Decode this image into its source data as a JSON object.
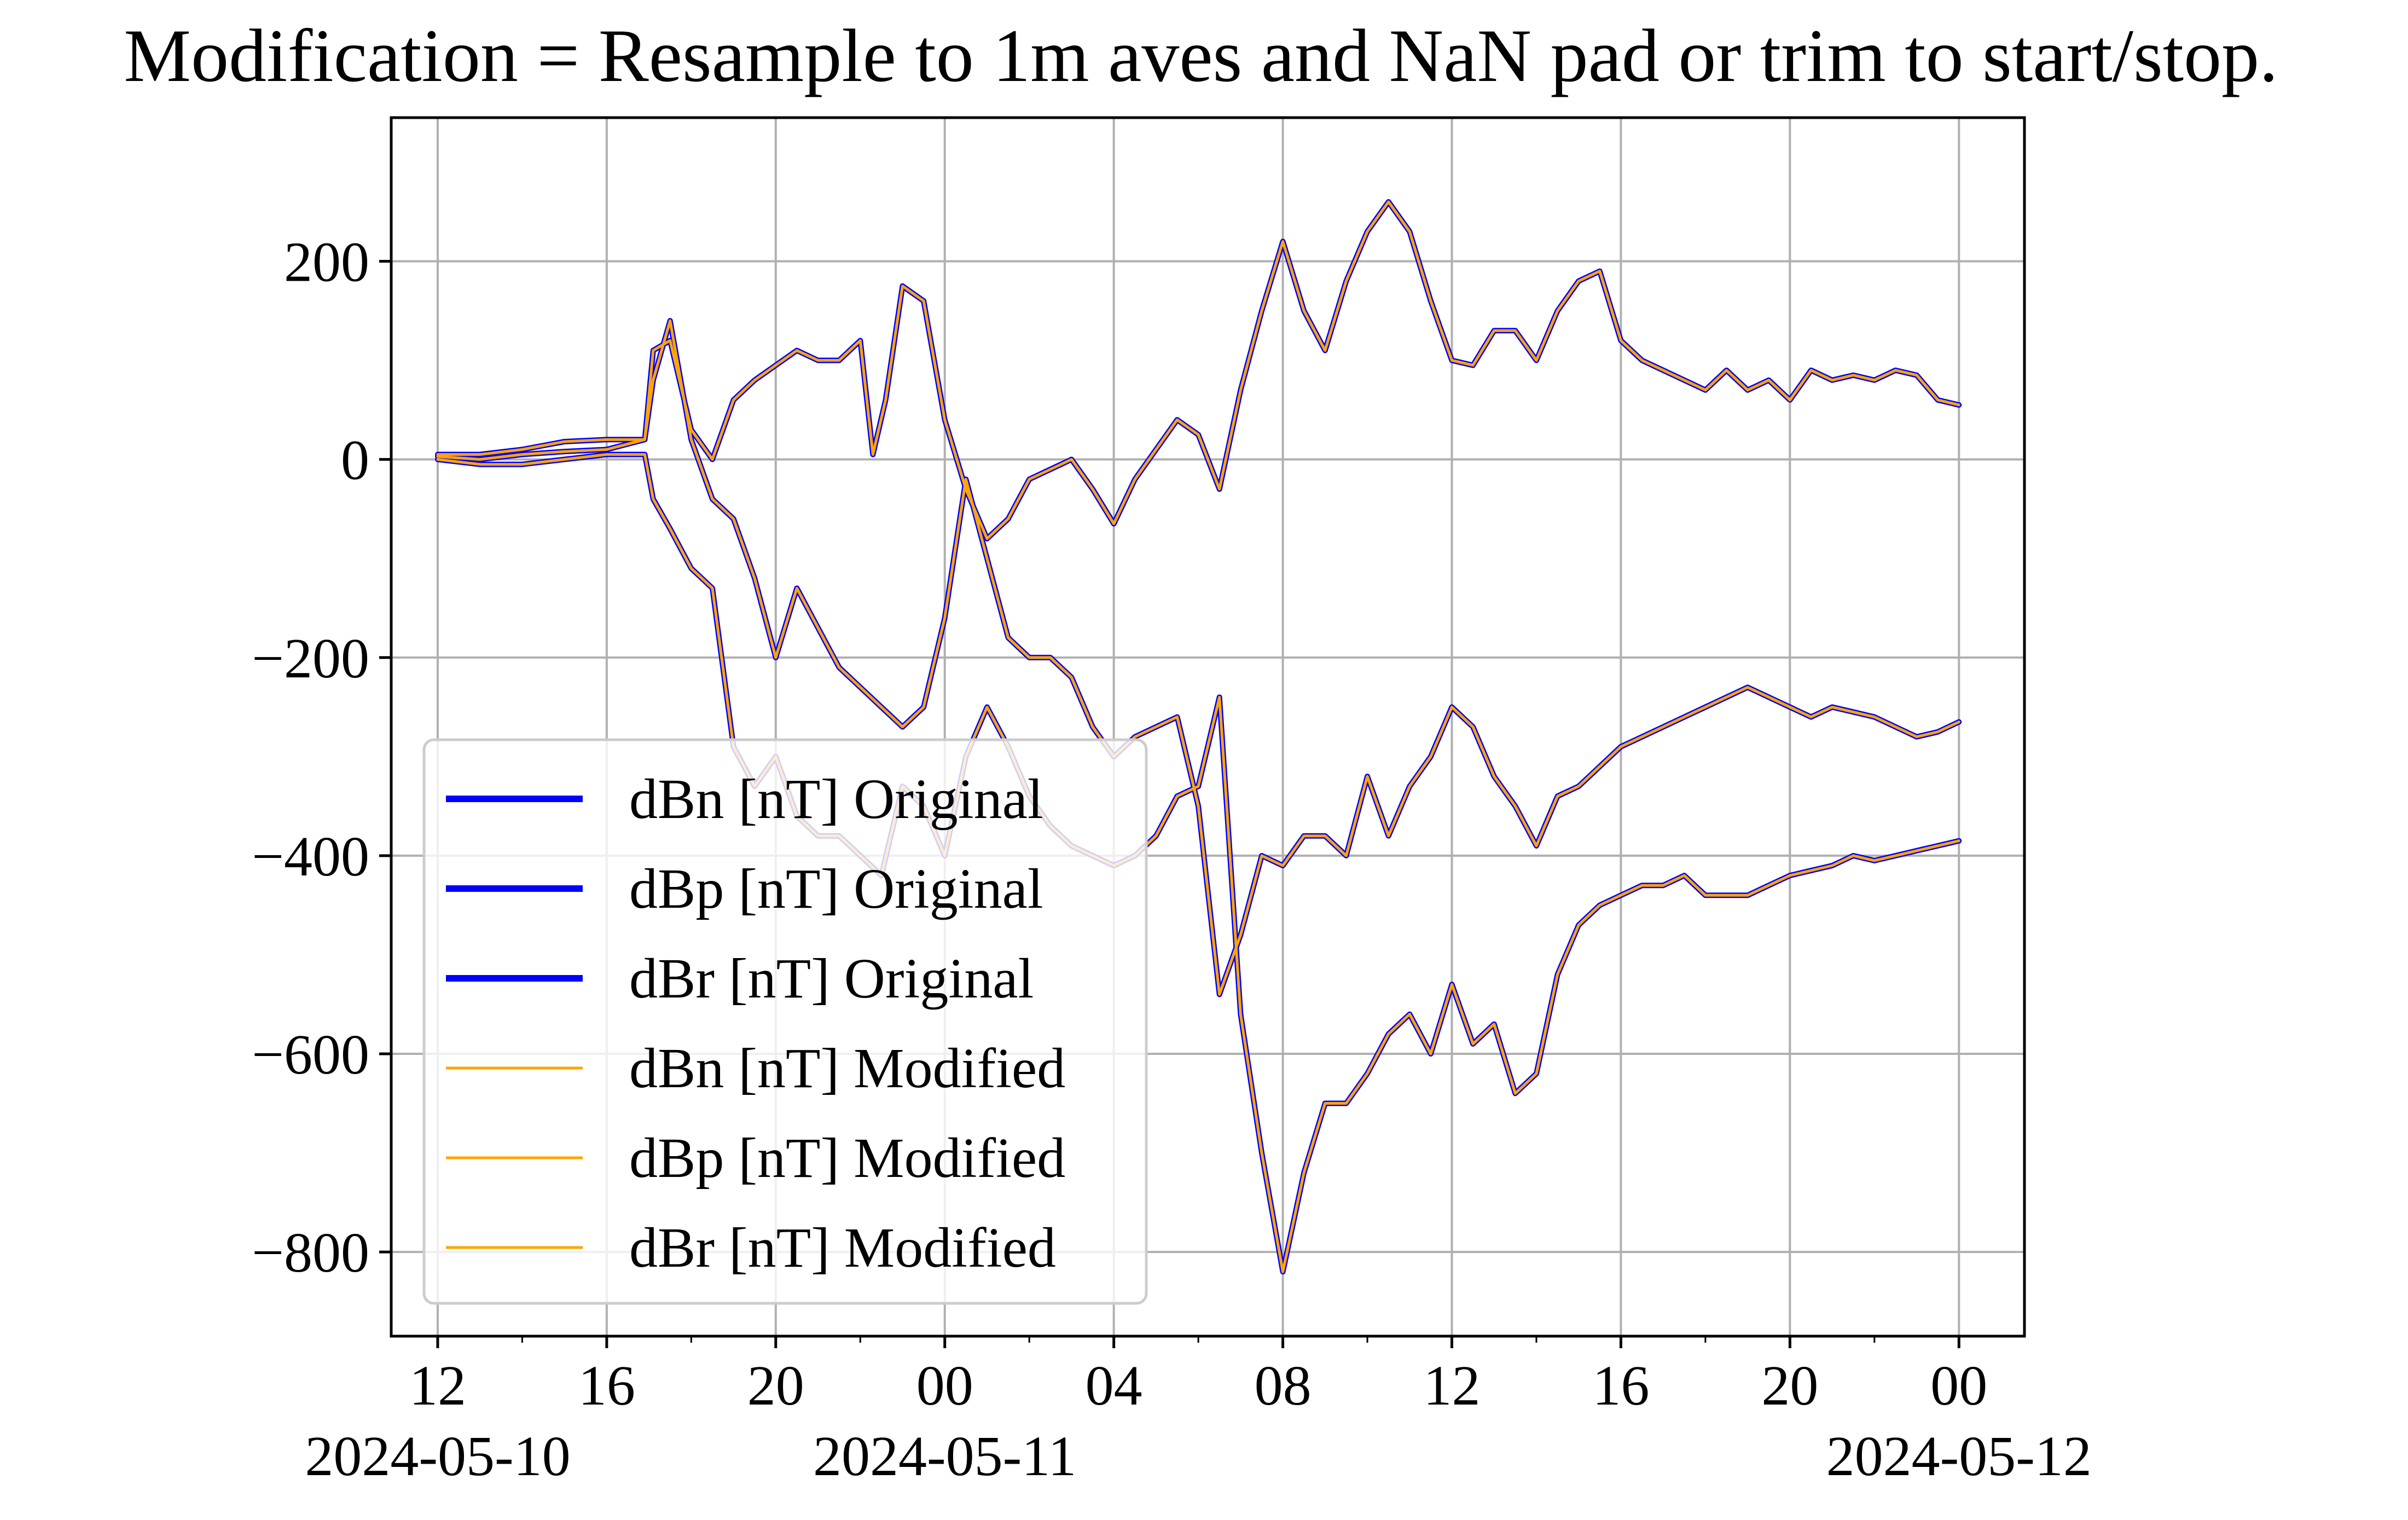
{
  "chart_data": {
    "type": "line",
    "title": "Modification = Resample to 1m aves and NaN pad or trim to start/stop.",
    "xlabel": "",
    "ylabel": "",
    "x_unit": "hours since 2024-05-10 00:00",
    "xlim": [
      10.9,
      49.55
    ],
    "ylim": [
      -885,
      345
    ],
    "grid": true,
    "x_ticks": [
      {
        "x": 12,
        "label": "12",
        "date": "2024-05-10"
      },
      {
        "x": 16,
        "label": "16",
        "date": ""
      },
      {
        "x": 20,
        "label": "20",
        "date": ""
      },
      {
        "x": 24,
        "label": "00",
        "date": "2024-05-11"
      },
      {
        "x": 28,
        "label": "04",
        "date": ""
      },
      {
        "x": 32,
        "label": "08",
        "date": ""
      },
      {
        "x": 36,
        "label": "12",
        "date": ""
      },
      {
        "x": 40,
        "label": "16",
        "date": ""
      },
      {
        "x": 44,
        "label": "20",
        "date": ""
      },
      {
        "x": 48,
        "label": "00",
        "date": "2024-05-12"
      }
    ],
    "minor_x_ticks": [
      14,
      18,
      22,
      26,
      30,
      34,
      38,
      42,
      46
    ],
    "y_ticks": [
      {
        "y": 200,
        "label": "200"
      },
      {
        "y": 0,
        "label": "0"
      },
      {
        "y": -200,
        "label": "−200"
      },
      {
        "y": -400,
        "label": "−400"
      },
      {
        "y": -600,
        "label": "−600"
      },
      {
        "y": -800,
        "label": "−800"
      }
    ],
    "legend_location": "lower-left",
    "series": [
      {
        "name": "dBn [nT] Original",
        "color": "#0000ff",
        "style": "thick",
        "x": [
          12.0,
          13.0,
          14.0,
          15.0,
          16.0,
          16.9,
          17.1,
          17.5,
          18.0,
          18.5,
          19.0,
          19.5,
          20.0,
          20.5,
          21.0,
          21.5,
          22.0,
          22.3,
          22.6,
          23.0,
          23.5,
          24.0,
          24.5,
          25.0,
          25.5,
          26.0,
          27.0,
          27.5,
          28.0,
          28.5,
          29.0,
          29.5,
          30.0,
          30.5,
          31.0,
          31.5,
          32.0,
          32.5,
          33.0,
          33.5,
          34.0,
          34.5,
          35.0,
          35.5,
          36.0,
          36.5,
          37.0,
          37.5,
          38.0,
          38.5,
          39.0,
          39.5,
          40.0,
          40.5,
          41.0,
          41.5,
          42.0,
          42.5,
          43.0,
          43.5,
          44.0,
          44.5,
          45.0,
          45.5,
          46.0,
          46.5,
          47.0,
          47.5,
          48.0
        ],
        "y": [
          3,
          0,
          5,
          8,
          10,
          20,
          110,
          120,
          30,
          0,
          60,
          80,
          95,
          110,
          100,
          100,
          120,
          5,
          60,
          175,
          160,
          40,
          -30,
          -80,
          -60,
          -20,
          0,
          -30,
          -65,
          -20,
          10,
          40,
          25,
          -30,
          70,
          150,
          220,
          150,
          110,
          180,
          230,
          260,
          230,
          160,
          100,
          95,
          130,
          130,
          100,
          150,
          180,
          190,
          120,
          100,
          90,
          80,
          70,
          90,
          70,
          80,
          60,
          90,
          80,
          85,
          80,
          90,
          85,
          60,
          55
        ]
      },
      {
        "name": "dBp [nT] Original",
        "color": "#0000ff",
        "style": "thick",
        "x": [
          12.0,
          13.0,
          14.0,
          15.0,
          16.0,
          16.9,
          17.1,
          17.5,
          18.0,
          18.5,
          19.0,
          19.5,
          20.0,
          20.5,
          21.0,
          21.5,
          22.0,
          22.5,
          23.0,
          23.5,
          24.0,
          24.5,
          25.0,
          25.5,
          26.0,
          26.5,
          27.0,
          27.5,
          28.0,
          28.5,
          29.0,
          29.5,
          30.0,
          30.5,
          31.0,
          31.5,
          32.0,
          32.5,
          33.0,
          33.5,
          34.0,
          34.5,
          35.0,
          35.5,
          36.0,
          36.5,
          37.0,
          37.5,
          38.0,
          38.5,
          39.0,
          39.5,
          40.0,
          40.5,
          41.0,
          41.5,
          42.0,
          42.5,
          43.0,
          43.5,
          44.0,
          44.5,
          45.0,
          45.5,
          46.0,
          46.5,
          47.0,
          47.5,
          48.0
        ],
        "y": [
          5,
          5,
          10,
          18,
          20,
          20,
          80,
          140,
          20,
          -40,
          -60,
          -120,
          -200,
          -130,
          -170,
          -210,
          -230,
          -250,
          -270,
          -250,
          -160,
          -20,
          -100,
          -180,
          -200,
          -200,
          -220,
          -270,
          -300,
          -280,
          -270,
          -260,
          -350,
          -540,
          -480,
          -400,
          -410,
          -380,
          -380,
          -400,
          -320,
          -380,
          -330,
          -300,
          -250,
          -270,
          -320,
          -350,
          -390,
          -340,
          -330,
          -310,
          -290,
          -280,
          -270,
          -260,
          -250,
          -240,
          -230,
          -240,
          -250,
          -260,
          -250,
          -255,
          -260,
          -270,
          -280,
          -275,
          -265
        ]
      },
      {
        "name": "dBr [nT] Original",
        "color": "#0000ff",
        "style": "thick",
        "x": [
          12.0,
          13.0,
          14.0,
          15.0,
          16.0,
          16.9,
          17.1,
          17.5,
          18.0,
          18.5,
          19.0,
          19.5,
          20.0,
          20.5,
          21.0,
          21.5,
          22.0,
          22.5,
          23.0,
          23.5,
          24.0,
          24.5,
          25.0,
          25.5,
          26.0,
          26.5,
          27.0,
          27.5,
          28.0,
          28.5,
          29.0,
          29.5,
          30.0,
          30.5,
          31.0,
          31.5,
          32.0,
          32.5,
          33.0,
          33.5,
          34.0,
          34.5,
          35.0,
          35.5,
          36.0,
          36.5,
          37.0,
          37.5,
          38.0,
          38.5,
          39.0,
          39.5,
          40.0,
          40.5,
          41.0,
          41.5,
          42.0,
          42.5,
          43.0,
          43.5,
          44.0,
          44.5,
          45.0,
          45.5,
          46.0,
          46.5,
          47.0,
          47.5,
          48.0
        ],
        "y": [
          0,
          -5,
          -5,
          0,
          5,
          5,
          -40,
          -70,
          -110,
          -130,
          -290,
          -330,
          -300,
          -360,
          -380,
          -380,
          -400,
          -420,
          -330,
          -350,
          -400,
          -300,
          -250,
          -290,
          -340,
          -370,
          -390,
          -400,
          -410,
          -400,
          -380,
          -340,
          -330,
          -240,
          -560,
          -700,
          -820,
          -720,
          -650,
          -650,
          -620,
          -580,
          -560,
          -600,
          -530,
          -590,
          -570,
          -640,
          -620,
          -520,
          -470,
          -450,
          -440,
          -430,
          -430,
          -420,
          -440,
          -440,
          -440,
          -430,
          -420,
          -415,
          -410,
          -400,
          -405,
          -400,
          -395,
          -390,
          -385
        ]
      },
      {
        "name": "dBn [nT] Modified",
        "color": "#ffa500",
        "style": "thin",
        "same_as": "dBn [nT] Original"
      },
      {
        "name": "dBp [nT] Modified",
        "color": "#ffa500",
        "style": "thin",
        "same_as": "dBp [nT] Original"
      },
      {
        "name": "dBr [nT] Modified",
        "color": "#ffa500",
        "style": "thin",
        "same_as": "dBr [nT] Original"
      }
    ]
  }
}
